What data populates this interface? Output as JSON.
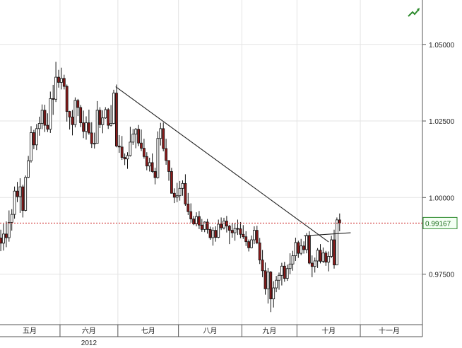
{
  "colors": {
    "background": "#ffffff",
    "grid": "#e3e3e3",
    "candle_up": "#ffffff",
    "candle_down": "#8b1a1a",
    "candle_outline": "#111111",
    "trendline": "#222222",
    "current_price_line": "#cc2222",
    "price_tag_border": "#2e8b2e",
    "price_tag_bg": "#f4fff4",
    "axis": "#555555"
  },
  "header": {
    "icon": "trend-arrow-icon"
  },
  "current_price": {
    "label": "0.99167",
    "value": 0.99167
  },
  "chart_data": {
    "type": "candlestick",
    "ylim": [
      0.9585,
      1.0645
    ],
    "yticks": [
      {
        "value": 1.05,
        "label": "1.05000"
      },
      {
        "value": 1.025,
        "label": "1.02500"
      },
      {
        "value": 1.0,
        "label": "1.00000"
      },
      {
        "value": 0.975,
        "label": "0.97500"
      }
    ],
    "months": [
      {
        "label": "五月",
        "start": 0,
        "end": 22
      },
      {
        "label": "六月",
        "start": 22,
        "end": 43
      },
      {
        "label": "七月",
        "start": 43,
        "end": 65
      },
      {
        "label": "八月",
        "start": 65,
        "end": 88
      },
      {
        "label": "九月",
        "start": 88,
        "end": 108
      },
      {
        "label": "十月",
        "start": 108,
        "end": 131
      },
      {
        "label": "十一月",
        "start": 131,
        "end": 152
      }
    ],
    "year_label": "2012",
    "trendlines": [
      {
        "x1": 41.7,
        "y1": 1.0362,
        "x2": 119.0,
        "y2": 0.9855
      },
      {
        "x1": 110.0,
        "y1": 0.9875,
        "x2": 127.0,
        "y2": 0.9885
      }
    ],
    "candles": [
      [
        0.9868,
        0.9895,
        0.9825,
        0.9851
      ],
      [
        0.9851,
        0.9914,
        0.9827,
        0.9881
      ],
      [
        0.9881,
        0.9922,
        0.9838,
        0.9869
      ],
      [
        0.9869,
        0.9958,
        0.9856,
        0.9919
      ],
      [
        0.9919,
        0.9962,
        0.9892,
        0.9945
      ],
      [
        0.9945,
        1.0036,
        0.9931,
        1.0021
      ],
      [
        1.0021,
        1.0051,
        0.9985,
        1.0003
      ],
      [
        1.0003,
        1.0063,
        0.995,
        1.0035
      ],
      [
        1.0035,
        1.0042,
        0.9935,
        0.9958
      ],
      [
        0.9958,
        1.0072,
        0.9955,
        1.0066
      ],
      [
        1.0066,
        1.0136,
        1.0063,
        1.012
      ],
      [
        1.012,
        1.0233,
        1.0114,
        1.0212
      ],
      [
        1.0212,
        1.0221,
        1.0158,
        1.0172
      ],
      [
        1.0172,
        1.024,
        1.0155,
        1.0225
      ],
      [
        1.0225,
        1.0264,
        1.0202,
        1.0242
      ],
      [
        1.0242,
        1.0304,
        1.0223,
        1.0285
      ],
      [
        1.0285,
        1.0303,
        1.0214,
        1.0236
      ],
      [
        1.0236,
        1.0275,
        1.0214,
        1.0223
      ],
      [
        1.0223,
        1.0346,
        1.0211,
        1.0323
      ],
      [
        1.0323,
        1.0368,
        1.027,
        1.0321
      ],
      [
        1.0321,
        1.0443,
        1.0312,
        1.0393
      ],
      [
        1.0393,
        1.0417,
        1.0359,
        1.0376
      ],
      [
        1.0376,
        1.0424,
        1.0353,
        1.0389
      ],
      [
        1.0389,
        1.0401,
        1.0353,
        1.0363
      ],
      [
        1.0363,
        1.0369,
        1.0248,
        1.0281
      ],
      [
        1.0281,
        1.0283,
        1.0222,
        1.0263
      ],
      [
        1.0263,
        1.0286,
        1.0203,
        1.0238
      ],
      [
        1.0238,
        1.0327,
        1.0229,
        1.0317
      ],
      [
        1.0317,
        1.0322,
        1.0266,
        1.0294
      ],
      [
        1.0294,
        1.0302,
        1.023,
        1.0244
      ],
      [
        1.0244,
        1.0284,
        1.0194,
        1.0216
      ],
      [
        1.0216,
        1.0265,
        1.0189,
        1.0244
      ],
      [
        1.0244,
        1.0287,
        1.0205,
        1.0211
      ],
      [
        1.0211,
        1.0246,
        1.0162,
        1.0176
      ],
      [
        1.0176,
        1.0212,
        1.016,
        1.0177
      ],
      [
        1.0177,
        1.0315,
        1.0177,
        1.0285
      ],
      [
        1.0285,
        1.0295,
        1.0227,
        1.0238
      ],
      [
        1.0238,
        1.0285,
        1.021,
        1.026
      ],
      [
        1.026,
        1.0295,
        1.0257,
        1.0287
      ],
      [
        1.0287,
        1.0292,
        1.0224,
        1.0236
      ],
      [
        1.0236,
        1.0302,
        1.0232,
        1.0242
      ],
      [
        1.0242,
        1.0352,
        1.0239,
        1.0341
      ],
      [
        1.0341,
        1.0369,
        1.0164,
        1.0168
      ],
      [
        1.0168,
        1.0204,
        1.0146,
        1.0165
      ],
      [
        1.0165,
        1.0201,
        1.0123,
        1.0131
      ],
      [
        1.0131,
        1.0144,
        1.0106,
        1.0126
      ],
      [
        1.0126,
        1.0148,
        1.0094,
        1.0137
      ],
      [
        1.0137,
        1.0231,
        1.0134,
        1.0181
      ],
      [
        1.0181,
        1.0224,
        1.0172,
        1.0207
      ],
      [
        1.0207,
        1.0227,
        1.0161,
        1.0223
      ],
      [
        1.0223,
        1.0237,
        1.0168,
        1.0178
      ],
      [
        1.0178,
        1.0222,
        1.0152,
        1.0161
      ],
      [
        1.0161,
        1.0192,
        1.0127,
        1.0134
      ],
      [
        1.0134,
        1.0148,
        1.0089,
        1.0103
      ],
      [
        1.0103,
        1.013,
        1.0085,
        1.0114
      ],
      [
        1.0114,
        1.0144,
        1.0081,
        1.0085
      ],
      [
        1.0085,
        1.0097,
        1.0043,
        1.0065
      ],
      [
        1.0065,
        1.0216,
        1.0062,
        1.0193
      ],
      [
        1.0193,
        1.0244,
        1.017,
        1.0225
      ],
      [
        1.0225,
        1.0245,
        1.0151,
        1.016
      ],
      [
        1.016,
        1.0192,
        1.0107,
        1.0121
      ],
      [
        1.0121,
        1.0122,
        1.0055,
        1.0085
      ],
      [
        1.0085,
        1.0097,
        1.0013,
        1.0014
      ],
      [
        1.0014,
        1.003,
        0.9982,
        1.0001
      ],
      [
        1.0001,
        1.0048,
        0.9985,
        1.0006
      ],
      [
        1.0006,
        1.0054,
        0.999,
        1.003
      ],
      [
        1.003,
        1.0056,
        1.0006,
        1.0046
      ],
      [
        1.0046,
        1.0076,
        0.9973,
        0.9979
      ],
      [
        0.9979,
        1.0015,
        0.9943,
        0.9954
      ],
      [
        0.9954,
        0.9981,
        0.9918,
        0.993
      ],
      [
        0.993,
        0.994,
        0.991,
        0.9914
      ],
      [
        0.9914,
        0.9952,
        0.9906,
        0.9938
      ],
      [
        0.9938,
        0.9956,
        0.9897,
        0.991
      ],
      [
        0.991,
        0.993,
        0.9888,
        0.9896
      ],
      [
        0.9896,
        0.9922,
        0.9887,
        0.992
      ],
      [
        0.992,
        0.993,
        0.9882,
        0.9896
      ],
      [
        0.9896,
        0.9905,
        0.9862,
        0.9869
      ],
      [
        0.9869,
        0.9903,
        0.9843,
        0.9893
      ],
      [
        0.9893,
        0.9906,
        0.9856,
        0.987
      ],
      [
        0.987,
        0.9928,
        0.9867,
        0.9913
      ],
      [
        0.9913,
        0.9935,
        0.9894,
        0.9901
      ],
      [
        0.9901,
        0.9934,
        0.9896,
        0.9923
      ],
      [
        0.9923,
        0.994,
        0.9886,
        0.9907
      ],
      [
        0.9907,
        0.9911,
        0.9848,
        0.9893
      ],
      [
        0.9893,
        0.9917,
        0.9869,
        0.9885
      ],
      [
        0.9885,
        0.9917,
        0.9859,
        0.9899
      ],
      [
        0.9899,
        0.9928,
        0.9878,
        0.9898
      ],
      [
        0.9898,
        0.992,
        0.9867,
        0.988
      ],
      [
        0.988,
        0.991,
        0.9865,
        0.9872
      ],
      [
        0.9872,
        0.989,
        0.9842,
        0.9856
      ],
      [
        0.9856,
        0.9863,
        0.9824,
        0.9836
      ],
      [
        0.9836,
        0.9876,
        0.9834,
        0.9862
      ],
      [
        0.9862,
        0.9906,
        0.9848,
        0.9893
      ],
      [
        0.9893,
        0.9908,
        0.9848,
        0.9852
      ],
      [
        0.9852,
        0.9868,
        0.9783,
        0.9796
      ],
      [
        0.9796,
        0.9829,
        0.974,
        0.9761
      ],
      [
        0.9761,
        0.9788,
        0.9683,
        0.9702
      ],
      [
        0.9702,
        0.977,
        0.9654,
        0.9757
      ],
      [
        0.9757,
        0.976,
        0.9626,
        0.9669
      ],
      [
        0.9669,
        0.9727,
        0.9641,
        0.9705
      ],
      [
        0.9705,
        0.9744,
        0.9691,
        0.973
      ],
      [
        0.973,
        0.9755,
        0.9699,
        0.9746
      ],
      [
        0.9746,
        0.9787,
        0.9713,
        0.9776
      ],
      [
        0.9776,
        0.979,
        0.9725,
        0.9736
      ],
      [
        0.9736,
        0.9781,
        0.9728,
        0.9768
      ],
      [
        0.9768,
        0.9818,
        0.975,
        0.9783
      ],
      [
        0.9783,
        0.9826,
        0.9761,
        0.981
      ],
      [
        0.981,
        0.9869,
        0.9793,
        0.9853
      ],
      [
        0.9853,
        0.9859,
        0.9803,
        0.9818
      ],
      [
        0.9818,
        0.9865,
        0.9812,
        0.9842
      ],
      [
        0.9842,
        0.9857,
        0.9817,
        0.983
      ],
      [
        0.983,
        0.9884,
        0.9818,
        0.9876
      ],
      [
        0.9876,
        0.989,
        0.9782,
        0.9786
      ],
      [
        0.9786,
        0.9811,
        0.974,
        0.9775
      ],
      [
        0.9775,
        0.9804,
        0.9755,
        0.9793
      ],
      [
        0.9793,
        0.9835,
        0.977,
        0.9828
      ],
      [
        0.9828,
        0.9848,
        0.9785,
        0.9792
      ],
      [
        0.9792,
        0.9837,
        0.9786,
        0.9819
      ],
      [
        0.9819,
        0.9826,
        0.9777,
        0.9789
      ],
      [
        0.9789,
        0.9824,
        0.9759,
        0.9808
      ],
      [
        0.9808,
        0.9875,
        0.9802,
        0.9862
      ],
      [
        0.9862,
        0.9895,
        0.9768,
        0.978
      ],
      [
        0.978,
        0.9935,
        0.9779,
        0.9927
      ],
      [
        0.9927,
        0.9948,
        0.989,
        0.9917
      ]
    ]
  }
}
